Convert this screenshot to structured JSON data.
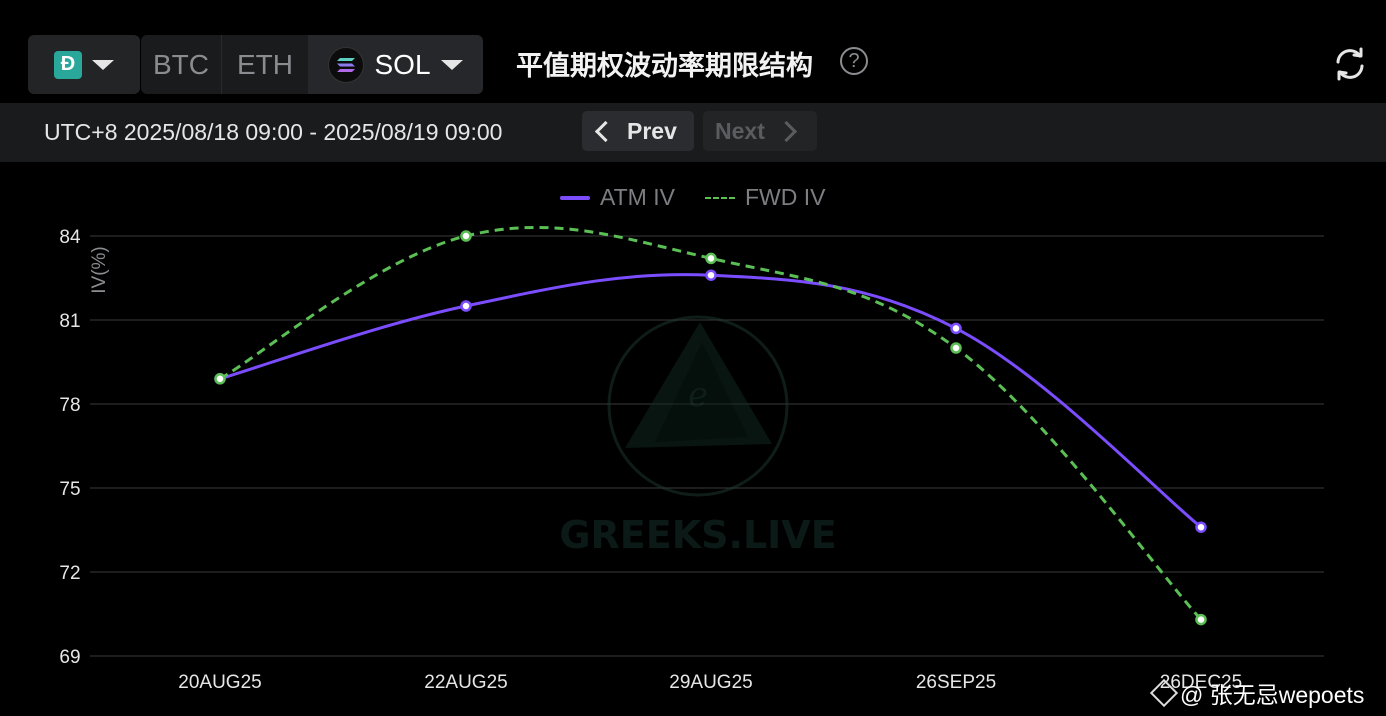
{
  "header": {
    "title": "平值期权波动率期限结构",
    "exchange_icon": "deribit-logo",
    "assets": [
      {
        "label": "BTC"
      },
      {
        "label": "ETH"
      },
      {
        "label": "SOL"
      }
    ],
    "help_icon": "question-circle-icon",
    "refresh_icon": "refresh-icon"
  },
  "datebar": {
    "range": "UTC+8 2025/08/18 09:00 - 2025/08/19 09:00",
    "prev_label": "Prev",
    "next_label": "Next"
  },
  "watermark": {
    "brand": "GREEKS.LIVE",
    "credit": "@ 张无忌wepoets"
  },
  "colors": {
    "atm": "#7b4dff",
    "fwd": "#5bbf55",
    "background": "#000000",
    "grid": "#3a3a3a"
  },
  "chart_data": {
    "type": "line",
    "ylabel": "IV(%)",
    "categories": [
      "20AUG25",
      "22AUG25",
      "29AUG25",
      "26SEP25",
      "26DEC25"
    ],
    "y_ticks": [
      69,
      72,
      75,
      78,
      81,
      84
    ],
    "ylim": [
      69,
      84
    ],
    "grid": true,
    "legend_position": "top-center",
    "series": [
      {
        "name": "ATM IV",
        "style": "solid",
        "values": [
          78.9,
          81.5,
          82.6,
          80.7,
          73.6
        ]
      },
      {
        "name": "FWD IV",
        "style": "dashed",
        "values": [
          78.9,
          84.0,
          83.2,
          80.0,
          70.3
        ]
      }
    ]
  }
}
